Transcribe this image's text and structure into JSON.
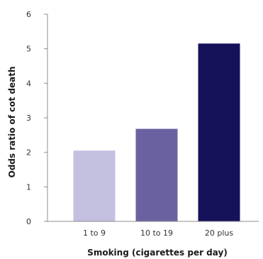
{
  "chart_data": {
    "type": "bar",
    "categories": [
      "1 to 9",
      "10 to 19",
      "20 plus"
    ],
    "values": [
      2.05,
      2.68,
      5.15
    ],
    "title": "",
    "xlabel": "Smoking (cigarettes per day)",
    "ylabel": "Odds ratio of cot death",
    "ylim": [
      0,
      6
    ],
    "yticks": [
      "0",
      "1",
      "2",
      "3",
      "4",
      "5",
      "6"
    ],
    "bar_colors": [
      "#c4c0e0",
      "#6a62a0",
      "#15125a"
    ],
    "axis_color": "#8c8c8c",
    "grid": false,
    "legend": "none"
  }
}
